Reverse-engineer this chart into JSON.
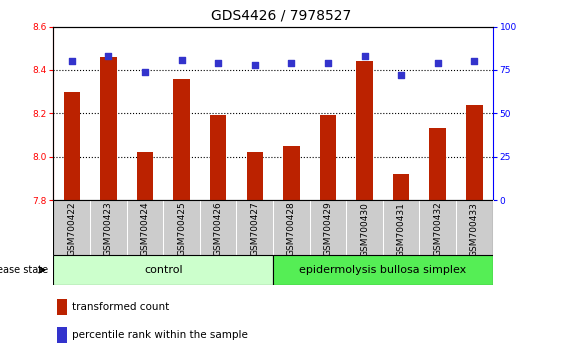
{
  "title": "GDS4426 / 7978527",
  "samples": [
    "GSM700422",
    "GSM700423",
    "GSM700424",
    "GSM700425",
    "GSM700426",
    "GSM700427",
    "GSM700428",
    "GSM700429",
    "GSM700430",
    "GSM700431",
    "GSM700432",
    "GSM700433"
  ],
  "transformed_count": [
    8.3,
    8.46,
    8.02,
    8.36,
    8.19,
    8.02,
    8.05,
    8.19,
    8.44,
    7.92,
    8.13,
    8.24
  ],
  "percentile_rank": [
    80,
    83,
    74,
    81,
    79,
    78,
    79,
    79,
    83,
    72,
    79,
    80
  ],
  "ylim_left": [
    7.8,
    8.6
  ],
  "ylim_right": [
    0,
    100
  ],
  "yticks_left": [
    7.8,
    8.0,
    8.2,
    8.4,
    8.6
  ],
  "yticks_right": [
    0,
    25,
    50,
    75,
    100
  ],
  "control_count": 6,
  "ebs_count": 6,
  "group1_label": "control",
  "group2_label": "epidermolysis bullosa simplex",
  "disease_state_label": "disease state",
  "legend_bar_label": "transformed count",
  "legend_dot_label": "percentile rank within the sample",
  "bar_color": "#bb2200",
  "dot_color": "#3333cc",
  "control_bg": "#ccffcc",
  "ebs_bg": "#55ee55",
  "sample_box_color": "#cccccc",
  "title_fontsize": 10,
  "tick_fontsize": 6.5,
  "label_fontsize": 8,
  "legend_fontsize": 7.5,
  "bar_width": 0.45,
  "grid_yticks": [
    8.0,
    8.2,
    8.4
  ]
}
